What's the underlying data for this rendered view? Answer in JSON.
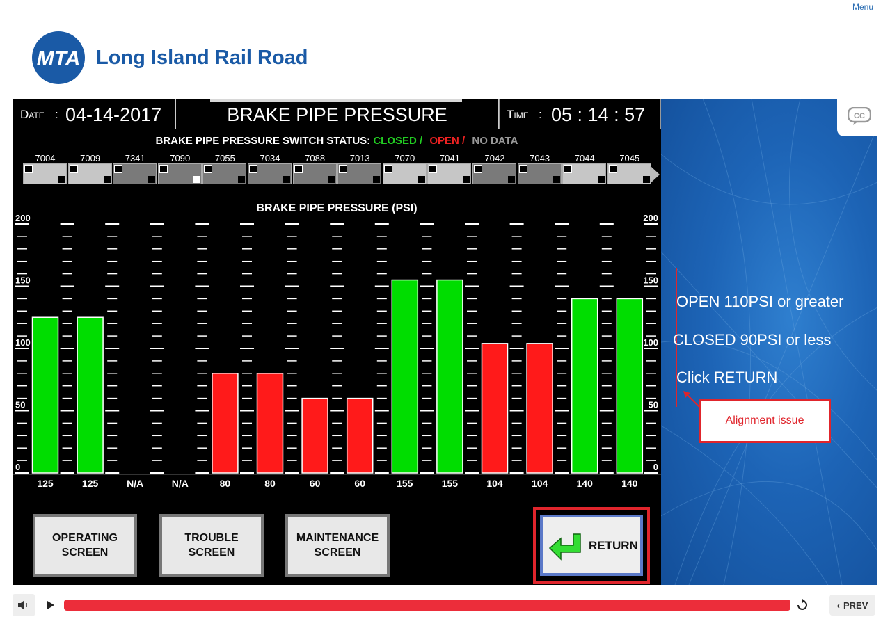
{
  "menu_label": "Menu",
  "brand": {
    "logo_text": "MTA",
    "name": "Long Island Rail Road"
  },
  "header": {
    "date_label": "Date",
    "date_value": "04-14-2017",
    "title": "BRAKE PIPE PRESSURE",
    "time_label": "Time",
    "time_value": "05 : 14 : 57"
  },
  "switch_status": {
    "title": "BRAKE PIPE PRESSURE SWITCH STATUS:",
    "closed_label": "CLOSED /",
    "open_label": "OPEN /",
    "nodata_label": "NO DATA",
    "colors": {
      "closed": "#22cc22",
      "open": "#ee2222",
      "nodata": "#999999"
    },
    "cars": [
      "7004",
      "7009",
      "7341",
      "7090",
      "7055",
      "7034",
      "7088",
      "7013",
      "7070",
      "7041",
      "7042",
      "7043",
      "7044",
      "7045"
    ]
  },
  "chart_data": {
    "type": "bar",
    "title": "BRAKE PIPE PRESSURE (PSI)",
    "categories": [
      "7004",
      "7009",
      "7341",
      "7090",
      "7055",
      "7034",
      "7088",
      "7013",
      "7070",
      "7041",
      "7042",
      "7043",
      "7044",
      "7045"
    ],
    "values": [
      125,
      125,
      null,
      null,
      80,
      80,
      60,
      60,
      155,
      155,
      104,
      104,
      140,
      140
    ],
    "value_labels": [
      "125",
      "125",
      "N/A",
      "N/A",
      "80",
      "80",
      "60",
      "60",
      "155",
      "155",
      "104",
      "104",
      "140",
      "140"
    ],
    "bar_colors": [
      "#00dd00",
      "#00dd00",
      null,
      null,
      "#ff1a1a",
      "#ff1a1a",
      "#ff1a1a",
      "#ff1a1a",
      "#00dd00",
      "#00dd00",
      "#ff1a1a",
      "#ff1a1a",
      "#00dd00",
      "#00dd00"
    ],
    "ylim": [
      0,
      200
    ],
    "yticks": [
      "0",
      "50",
      "100",
      "150",
      "200"
    ]
  },
  "buttons": {
    "operating": "OPERATING SCREEN",
    "trouble": "TROUBLE SCREEN",
    "maintenance": "MAINTENANCE SCREEN",
    "return": "RETURN"
  },
  "instructions": {
    "line1": "OPEN 110PSI or greater",
    "line2": "CLOSED 90PSI or less",
    "line3": "Click RETURN"
  },
  "annotation": "Alignment issue",
  "player": {
    "prev_label": "PREV",
    "cc_label": "CC"
  }
}
